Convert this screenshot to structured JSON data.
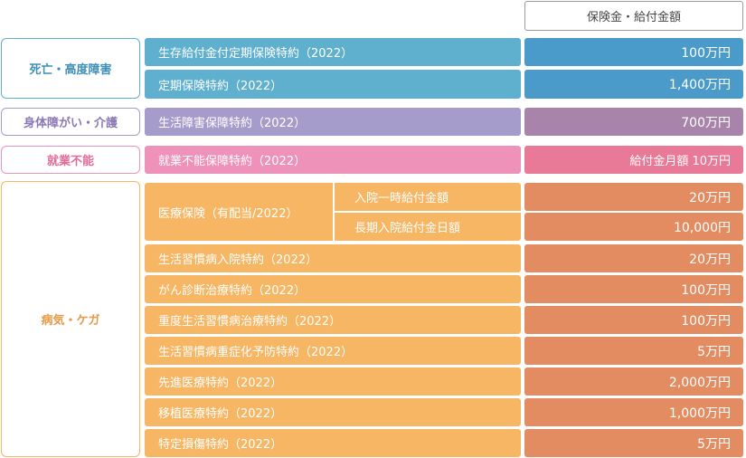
{
  "header": {
    "amount_label": "保険金・給付金額"
  },
  "categories": {
    "death": "死亡・高度障害",
    "disability": "身体障がい・介護",
    "incapacity": "就業不能",
    "illness": "病気・ケガ"
  },
  "rows": [
    {
      "name": "生存給付金付定期保険特約（2022）",
      "value": "100万円"
    },
    {
      "name": "定期保険特約（2022）",
      "value": "1,400万円"
    },
    {
      "name": "生活障害保障特約（2022）",
      "value": "700万円"
    },
    {
      "name": "就業不能保障特約（2022）",
      "value": "給付金月額 10万円"
    },
    {
      "name": "医療保険（有配当/2022）",
      "sub": [
        "入院一時給付金額",
        "長期入院給付金日額"
      ],
      "values": [
        "20万円",
        "10,000円"
      ]
    },
    {
      "name": "生活習慣病入院特約（2022）",
      "value": "20万円"
    },
    {
      "name": "がん診断治療特約（2022）",
      "value": "100万円"
    },
    {
      "name": "重度生活習慣病治療特約（2022）",
      "value": "100万円"
    },
    {
      "name": "生活習慣病重症化予防特約（2022）",
      "value": "5万円"
    },
    {
      "name": "先進医療特約（2022）",
      "value": "2,000万円"
    },
    {
      "name": "移植医療特約（2022）",
      "value": "1,000万円"
    },
    {
      "name": "特定損傷特約（2022）",
      "value": "5万円"
    }
  ],
  "colors": {
    "blue_name": "#5fb0cf",
    "blue_value": "#4a9bc9",
    "purple_name": "#a59ccb",
    "purple_value": "#a984aa",
    "pink_name": "#ef92b9",
    "pink_value": "#e97a97",
    "orange_name": "#f6b663",
    "orange_value": "#e38c61"
  }
}
